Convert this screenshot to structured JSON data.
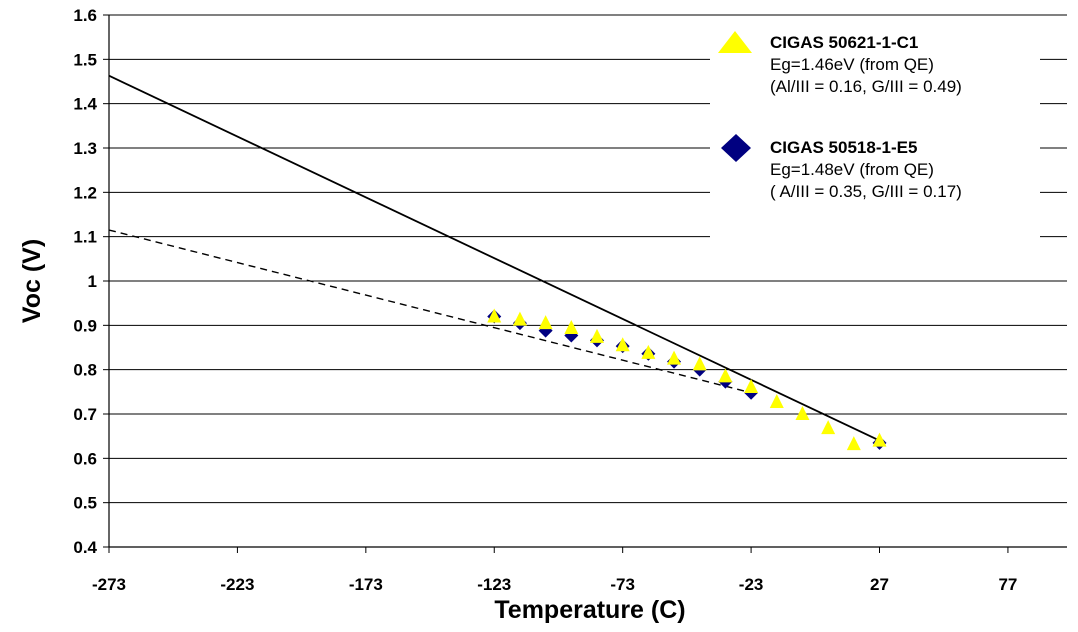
{
  "chart_data": {
    "type": "scatter",
    "xlabel": "Temperature (C)",
    "ylabel": "Voc (V)",
    "xlim": [
      -273,
      100
    ],
    "ylim": [
      0.4,
      1.6
    ],
    "x_ticks": [
      "-273",
      "-223",
      "-173",
      "-123",
      "-73",
      "-23",
      "27",
      "77"
    ],
    "y_ticks": [
      "0.4",
      "0.5",
      "0.6",
      "0.7",
      "0.8",
      "0.9",
      "1",
      "1.1",
      "1.2",
      "1.3",
      "1.4",
      "1.5",
      "1.6"
    ],
    "grid": "horizontal",
    "legend_position": "top-right",
    "series": [
      {
        "name": "CIGAS 50621-1-C1",
        "info": [
          "Eg=1.46eV (from QE)",
          "(Al/III = 0.16, G/III = 0.49)"
        ],
        "marker": "triangle",
        "color": "#ffff00",
        "x": [
          -123,
          -113,
          -103,
          -93,
          -83,
          -73,
          -63,
          -53,
          -43,
          -33,
          -23,
          -13,
          -3,
          7,
          17,
          27
        ],
        "y": [
          0.92,
          0.913,
          0.905,
          0.894,
          0.874,
          0.855,
          0.838,
          0.825,
          0.812,
          0.785,
          0.761,
          0.727,
          0.7,
          0.668,
          0.632,
          0.64
        ]
      },
      {
        "name": "CIGAS 50518-1-E5",
        "info": [
          "Eg=1.48eV (from QE)",
          "( A/III = 0.35, G/III = 0.17)"
        ],
        "marker": "diamond",
        "color": "#000080",
        "x": [
          -123,
          -113,
          -103,
          -93,
          -83,
          -73,
          -63,
          -53,
          -43,
          -33,
          -23,
          27
        ],
        "y": [
          0.92,
          0.905,
          0.888,
          0.877,
          0.866,
          0.853,
          0.836,
          0.818,
          0.8,
          0.773,
          0.748,
          0.635
        ]
      }
    ],
    "fit_lines": [
      {
        "style": "solid",
        "x": [
          -273,
          27
        ],
        "y": [
          1.463,
          0.64
        ]
      },
      {
        "style": "dashed",
        "x": [
          -273,
          -23
        ],
        "y": [
          1.115,
          0.748
        ]
      }
    ]
  }
}
